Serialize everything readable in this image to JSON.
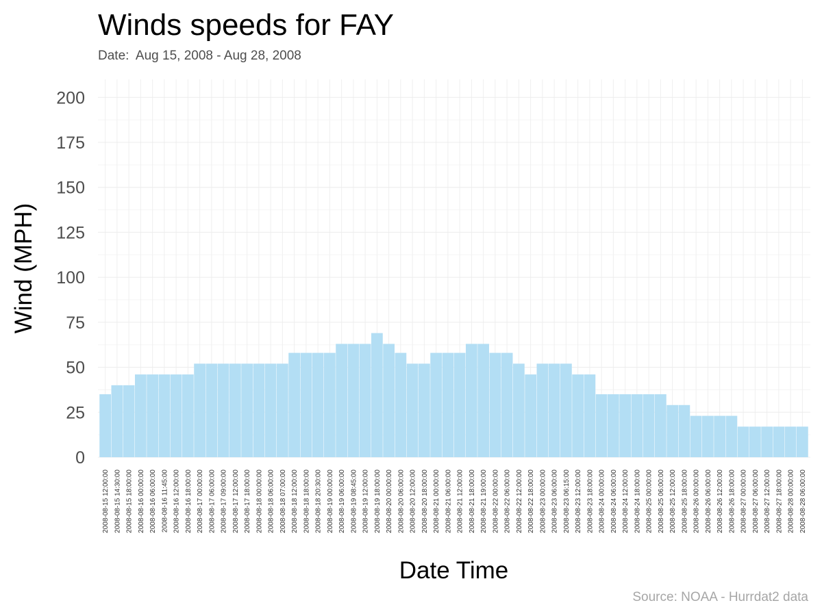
{
  "chart_data": {
    "type": "bar",
    "title": "Winds speeds for FAY",
    "subtitle": "Date:  Aug 15, 2008 - Aug 28, 2008",
    "xlabel": "Date Time",
    "ylabel": "Wind (MPH)",
    "caption": "Source: NOAA - Hurrdat2 data",
    "ylim": [
      0,
      210
    ],
    "yticks": [
      0,
      25,
      50,
      75,
      100,
      125,
      150,
      175,
      200
    ],
    "grid": true,
    "bar_color": "#b3def4",
    "categories": [
      "2008-08-15 12:00:00",
      "2008-08-15 14:30:00",
      "2008-08-15 18:00:00",
      "2008-08-16 00:00:00",
      "2008-08-16 06:00:00",
      "2008-08-16 11:45:00",
      "2008-08-16 12:00:00",
      "2008-08-16 18:00:00",
      "2008-08-17 00:00:00",
      "2008-08-17 06:00:00",
      "2008-08-17 09:00:00",
      "2008-08-17 12:00:00",
      "2008-08-17 18:00:00",
      "2008-08-18 00:00:00",
      "2008-08-18 06:00:00",
      "2008-08-18 07:00:00",
      "2008-08-18 12:00:00",
      "2008-08-18 18:00:00",
      "2008-08-18 20:30:00",
      "2008-08-19 00:00:00",
      "2008-08-19 06:00:00",
      "2008-08-19 08:45:00",
      "2008-08-19 12:00:00",
      "2008-08-19 18:00:00",
      "2008-08-20 00:00:00",
      "2008-08-20 06:00:00",
      "2008-08-20 12:00:00",
      "2008-08-20 18:00:00",
      "2008-08-21 00:00:00",
      "2008-08-21 06:00:00",
      "2008-08-21 12:00:00",
      "2008-08-21 18:00:00",
      "2008-08-21 19:00:00",
      "2008-08-22 00:00:00",
      "2008-08-22 06:00:00",
      "2008-08-22 12:00:00",
      "2008-08-22 18:00:00",
      "2008-08-23 00:00:00",
      "2008-08-23 06:00:00",
      "2008-08-23 06:15:00",
      "2008-08-23 12:00:00",
      "2008-08-23 18:00:00",
      "2008-08-24 00:00:00",
      "2008-08-24 06:00:00",
      "2008-08-24 12:00:00",
      "2008-08-24 18:00:00",
      "2008-08-25 00:00:00",
      "2008-08-25 06:00:00",
      "2008-08-25 12:00:00",
      "2008-08-25 18:00:00",
      "2008-08-26 00:00:00",
      "2008-08-26 06:00:00",
      "2008-08-26 12:00:00",
      "2008-08-26 18:00:00",
      "2008-08-27 00:00:00",
      "2008-08-27 06:00:00",
      "2008-08-27 12:00:00",
      "2008-08-27 18:00:00",
      "2008-08-28 00:00:00",
      "2008-08-28 06:00:00"
    ],
    "values": [
      35,
      40,
      40,
      46,
      46,
      46,
      46,
      46,
      52,
      52,
      52,
      52,
      52,
      52,
      52,
      52,
      58,
      58,
      58,
      58,
      63,
      63,
      63,
      69,
      63,
      58,
      52,
      52,
      58,
      58,
      58,
      63,
      63,
      58,
      58,
      52,
      46,
      52,
      52,
      52,
      46,
      46,
      35,
      35,
      35,
      35,
      35,
      35,
      29,
      29,
      23,
      23,
      23,
      23,
      17,
      17,
      17,
      17,
      17,
      17
    ]
  }
}
